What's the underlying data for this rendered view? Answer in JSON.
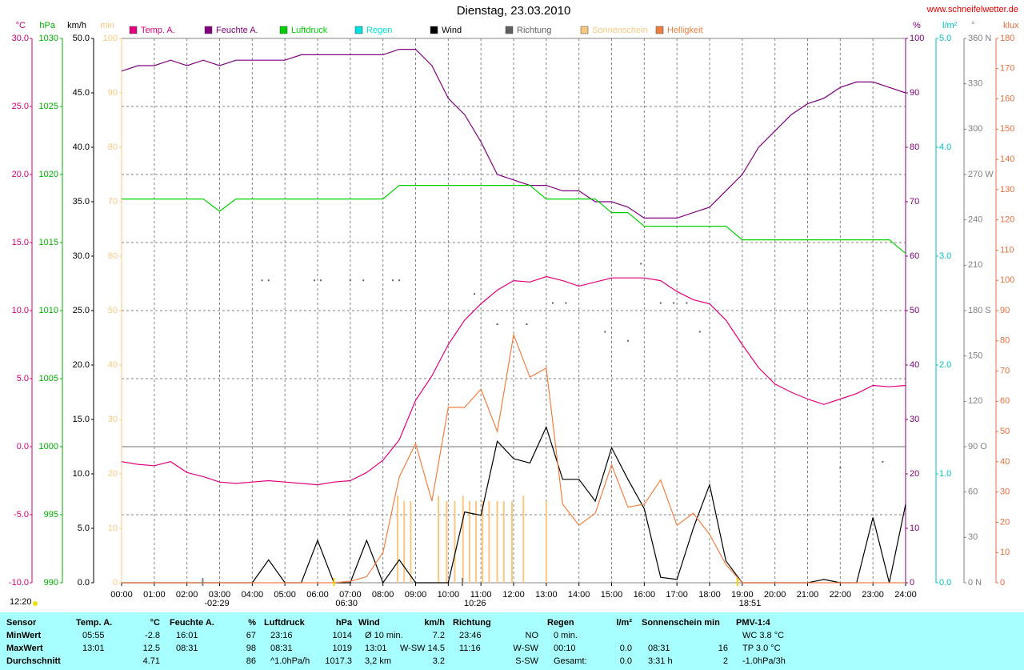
{
  "chart_data": {
    "type": "line",
    "title": "Dienstag, 23.03.2010",
    "source": "www.schneifelwetter.de",
    "day_length": "12:20",
    "xlim": [
      0,
      24
    ],
    "xticks": [
      {
        "value": 0,
        "label": "00:00"
      },
      {
        "value": 1,
        "label": "01:00"
      },
      {
        "value": 2,
        "label": "02:00"
      },
      {
        "value": 3,
        "label": "03:00"
      },
      {
        "value": 4,
        "label": "04:00"
      },
      {
        "value": 5,
        "label": "05:00"
      },
      {
        "value": 6,
        "label": "06:00"
      },
      {
        "value": 7,
        "label": "07:00"
      },
      {
        "value": 8,
        "label": "08:00"
      },
      {
        "value": 9,
        "label": "09:00"
      },
      {
        "value": 10,
        "label": "10:00"
      },
      {
        "value": 11,
        "label": "11:00"
      },
      {
        "value": 12,
        "label": "12:00"
      },
      {
        "value": 13,
        "label": "13:00"
      },
      {
        "value": 14,
        "label": "14:00"
      },
      {
        "value": 15,
        "label": "15:00"
      },
      {
        "value": 16,
        "label": "16:00"
      },
      {
        "value": 17,
        "label": "17:00"
      },
      {
        "value": 18,
        "label": "18:00"
      },
      {
        "value": 19,
        "label": "19:00"
      },
      {
        "value": 20,
        "label": "20:00"
      },
      {
        "value": 21,
        "label": "21:00"
      },
      {
        "value": 22,
        "label": "22:00"
      },
      {
        "value": 23,
        "label": "23:00"
      },
      {
        "value": 24,
        "label": "24:00"
      }
    ],
    "grid": true,
    "zero_line": true,
    "events": [
      {
        "label": "-02:29"
      },
      {
        "label": "06:30"
      },
      {
        "label": "10:26"
      },
      {
        "label": "18:51"
      }
    ],
    "y_axes": [
      {
        "unit": "°C",
        "color": "#d0007a",
        "lim": [
          -10,
          30
        ],
        "ticks": [
          {
            "value": -10,
            "label": "-10.0"
          },
          {
            "value": -5,
            "label": "-5.0"
          },
          {
            "value": 0,
            "label": "0.0"
          },
          {
            "value": 5,
            "label": "5.0"
          },
          {
            "value": 10,
            "label": "10.0"
          },
          {
            "value": 15,
            "label": "15.0"
          },
          {
            "value": 20,
            "label": "20.0"
          },
          {
            "value": 25,
            "label": "25.0"
          },
          {
            "value": 30,
            "label": "30.0"
          }
        ]
      },
      {
        "unit": "hPa",
        "color": "#00b000",
        "lim": [
          990,
          1030
        ],
        "ticks": [
          990,
          995,
          1000,
          1005,
          1010,
          1015,
          1020,
          1025,
          1030
        ]
      },
      {
        "unit": "km/h",
        "color": "#000000",
        "lim": [
          0,
          50
        ],
        "ticks": [
          {
            "value": 0,
            "label": "0.0"
          },
          {
            "value": 5,
            "label": "5.0"
          },
          {
            "value": 10,
            "label": "10.0"
          },
          {
            "value": 15,
            "label": "15.0"
          },
          {
            "value": 20,
            "label": "20.0"
          },
          {
            "value": 25,
            "label": "25.0"
          },
          {
            "value": 30,
            "label": "30.0"
          },
          {
            "value": 35,
            "label": "35.0"
          },
          {
            "value": 40,
            "label": "40.0"
          },
          {
            "value": 45,
            "label": "45.0"
          },
          {
            "value": 50,
            "label": "50.0"
          }
        ]
      },
      {
        "unit": "min",
        "color": "#f8c880",
        "lim": [
          0,
          100
        ],
        "ticks": [
          0,
          10,
          20,
          30,
          40,
          50,
          60,
          70,
          80,
          90,
          100
        ]
      },
      {
        "unit": "%",
        "color": "#800080",
        "lim": [
          0,
          100
        ],
        "ticks": [
          0,
          10,
          20,
          30,
          40,
          50,
          60,
          70,
          80,
          90,
          100
        ]
      },
      {
        "unit": "l/m²",
        "color": "#00c0c0",
        "lim": [
          0,
          5
        ],
        "ticks": [
          {
            "value": 0,
            "label": "0.0"
          },
          {
            "value": 1,
            "label": "1.0"
          },
          {
            "value": 2,
            "label": "2.0"
          },
          {
            "value": 3,
            "label": "3.0"
          },
          {
            "value": 4,
            "label": "4.0"
          },
          {
            "value": 5,
            "label": "5.0"
          }
        ]
      },
      {
        "unit": "°",
        "color": "#808080",
        "lim": [
          0,
          360
        ],
        "ticks": [
          {
            "value": 0,
            "label": "0 N"
          },
          30,
          60,
          {
            "value": 90,
            "label": "90 O"
          },
          120,
          150,
          {
            "value": 180,
            "label": "180 S"
          },
          210,
          240,
          {
            "value": 270,
            "label": "270 W"
          },
          300,
          330,
          {
            "value": 360,
            "label": "360 N"
          }
        ]
      },
      {
        "unit": "klux",
        "color": "#e07040",
        "lim": [
          0,
          180
        ],
        "ticks": [
          0,
          10,
          20,
          30,
          40,
          50,
          60,
          70,
          80,
          90,
          100,
          110,
          120,
          130,
          140,
          150,
          160,
          170,
          180
        ]
      }
    ],
    "x": [
      0,
      0.5,
      1,
      1.5,
      2,
      2.5,
      3,
      3.5,
      4,
      4.5,
      5,
      5.5,
      6,
      6.5,
      7,
      7.5,
      8,
      8.5,
      9,
      9.5,
      10,
      10.5,
      11,
      11.5,
      12,
      12.5,
      13,
      13.5,
      14,
      14.5,
      15,
      15.5,
      16,
      16.5,
      17,
      17.5,
      18,
      18.5,
      19,
      19.5,
      20,
      20.5,
      21,
      21.5,
      22,
      22.5,
      23,
      23.5,
      24
    ],
    "series": [
      {
        "name": "Temp. A.",
        "color": "#e0007f",
        "kind": "line",
        "axis": 0,
        "values": [
          -1.1,
          -1.3,
          -1.4,
          -1.1,
          -1.9,
          -2.2,
          -2.6,
          -2.7,
          -2.6,
          -2.5,
          -2.6,
          -2.7,
          -2.8,
          -2.6,
          -2.5,
          -1.9,
          -1.0,
          0.5,
          3.4,
          5.2,
          7.5,
          9.3,
          10.5,
          11.5,
          12.2,
          12.1,
          12.5,
          12.2,
          11.8,
          12.1,
          12.4,
          12.4,
          12.4,
          12.2,
          11.4,
          10.8,
          10.5,
          9.3,
          7.5,
          5.8,
          4.6,
          4.0,
          3.5,
          3.1,
          3.5,
          3.9,
          4.5,
          4.4,
          4.5
        ]
      },
      {
        "name": "Feuchte A.",
        "color": "#800080",
        "kind": "line",
        "axis": 4,
        "values": [
          94,
          95,
          95,
          96,
          95,
          96,
          95,
          96,
          96,
          96,
          96,
          97,
          97,
          97,
          97,
          97,
          97,
          98,
          98,
          95,
          89,
          86,
          81,
          75,
          74,
          73,
          73,
          72,
          72,
          70,
          70,
          69,
          67,
          67,
          67,
          68,
          69,
          72,
          75,
          80,
          83,
          86,
          88,
          89,
          91,
          92,
          92,
          91,
          90
        ]
      },
      {
        "name": "Luftdruck",
        "color": "#00d000",
        "kind": "line",
        "axis": 1,
        "values": [
          1018.2,
          1018.2,
          1018.2,
          1018.2,
          1018.2,
          1018.2,
          1017.3,
          1018.2,
          1018.2,
          1018.2,
          1018.2,
          1018.2,
          1018.2,
          1018.2,
          1018.2,
          1018.2,
          1018.2,
          1019.2,
          1019.2,
          1019.2,
          1019.2,
          1019.2,
          1019.2,
          1019.2,
          1019.2,
          1019.2,
          1018.2,
          1018.2,
          1018.2,
          1018.2,
          1017.2,
          1017.2,
          1016.2,
          1016.2,
          1016.2,
          1016.2,
          1016.2,
          1016.2,
          1015.2,
          1015.2,
          1015.2,
          1015.2,
          1015.2,
          1015.2,
          1015.2,
          1015.2,
          1015.2,
          1015.2,
          1014.2
        ]
      },
      {
        "name": "Regen",
        "color": "#00e0e0",
        "kind": "none",
        "axis": 5
      },
      {
        "name": "Wind",
        "color": "#000000",
        "kind": "line",
        "axis": 2,
        "values": [
          0,
          0,
          0,
          0,
          0,
          0,
          0,
          0,
          0,
          2.1,
          0,
          0,
          3.9,
          0,
          0,
          3.9,
          0,
          2.1,
          0,
          0,
          0,
          6.5,
          6.2,
          13.0,
          11.4,
          11.0,
          14.3,
          9.5,
          9.5,
          7.5,
          12.4,
          9.5,
          6.8,
          0.5,
          0.3,
          5.0,
          9.0,
          2.0,
          0,
          0,
          0,
          0,
          0,
          0.3,
          0,
          0,
          6.0,
          0,
          7.2
        ]
      },
      {
        "name": "Richtung",
        "color": "#606060",
        "kind": "dots",
        "axis": 6,
        "x": [
          4.3,
          4.5,
          5.9,
          6.1,
          7.0,
          7.4,
          8.3,
          8.5,
          10.8,
          11.5,
          12.4,
          13.2,
          13.6,
          14.8,
          15.5,
          15.9,
          16.5,
          16.9,
          17.3,
          17.7,
          22.0,
          23.3
        ],
        "values": [
          200,
          200,
          200,
          200,
          200,
          200,
          200,
          200,
          191,
          171,
          171,
          185,
          185,
          166,
          160,
          211,
          185,
          185,
          185,
          166,
          76,
          80
        ]
      },
      {
        "name": "Sonnenschein",
        "color": "#f8c880",
        "kind": "bars",
        "axis": 3,
        "x": [
          8.45,
          8.65,
          8.85,
          9.7,
          9.95,
          10.2,
          10.45,
          10.65,
          10.85,
          11.05,
          11.25,
          11.5,
          11.7,
          11.95,
          12.3,
          13.0
        ],
        "values": [
          16,
          15,
          15,
          16,
          15,
          15,
          16,
          15,
          15,
          15,
          15,
          15,
          15,
          15,
          16,
          15
        ]
      },
      {
        "name": "Helligkeit",
        "color": "#f08040",
        "kind": "line",
        "axis": 7,
        "values": [
          0,
          0,
          0,
          0,
          0,
          0,
          0,
          0,
          0,
          0,
          0,
          0,
          0,
          0,
          0.5,
          2,
          10,
          35,
          46,
          27,
          58,
          58,
          64,
          50,
          82,
          68,
          71,
          26,
          19,
          23,
          39,
          25,
          26,
          34,
          19,
          23,
          16,
          6,
          0,
          0,
          0,
          0,
          0,
          0,
          0,
          0,
          0,
          0,
          0
        ]
      }
    ]
  },
  "table": {
    "row_labels": [
      "Sensor",
      "MinWert",
      "MaxWert",
      "Durchschnitt"
    ],
    "columns": [
      {
        "header": "Temp. A.",
        "unit": "°C",
        "rows": [
          {
            "left": "05:55",
            "right": "-2.8"
          },
          {
            "left": "13:01",
            "right": "12.5"
          },
          {
            "right": "4.71"
          }
        ]
      },
      {
        "header": "Feuchte A.",
        "unit": "%",
        "rows": [
          {
            "left": "16:01",
            "right": "67"
          },
          {
            "left": "08:31",
            "right": "98"
          },
          {
            "right": "86"
          }
        ]
      },
      {
        "header": "Luftdruck",
        "unit": "hPa",
        "rows": [
          {
            "left": "23:16",
            "right": "1014"
          },
          {
            "left": "08:31",
            "right": "1019"
          },
          {
            "left": "^1.0hPa/h",
            "right": "1017.3"
          }
        ]
      },
      {
        "header": "Wind",
        "unit": "km/h",
        "rows": [
          {
            "left": "Ø 10 min.",
            "right": "7.2"
          },
          {
            "left": "13:01",
            "right": "W-SW 14.5"
          },
          {
            "left": "3,2 km",
            "right": "3.2"
          }
        ]
      },
      {
        "header": "Richtung",
        "rows": [
          {
            "left": "23:46",
            "right": "NO"
          },
          {
            "left": "11:16",
            "right": "W-SW"
          },
          {
            "right": "S-SW"
          }
        ]
      },
      {
        "header": "Regen",
        "unit": "l/m²",
        "rows": [
          {
            "left": "0 min."
          },
          {
            "left": "00:10",
            "right": "0.0"
          },
          {
            "left": "Gesamt:",
            "right": "0.0"
          }
        ]
      },
      {
        "header": "Sonnenschein min",
        "rows": [
          {},
          {
            "left": "08:31",
            "right": "16"
          },
          {
            "left": "3:31 h",
            "right": "2"
          }
        ]
      },
      {
        "header": "PMV-1:4",
        "rows": [
          {
            "left": "WC 3.8 °C"
          },
          {
            "left": "TP 3.0 °C"
          },
          {
            "left": "-1.0hPa/3h"
          }
        ]
      }
    ]
  }
}
